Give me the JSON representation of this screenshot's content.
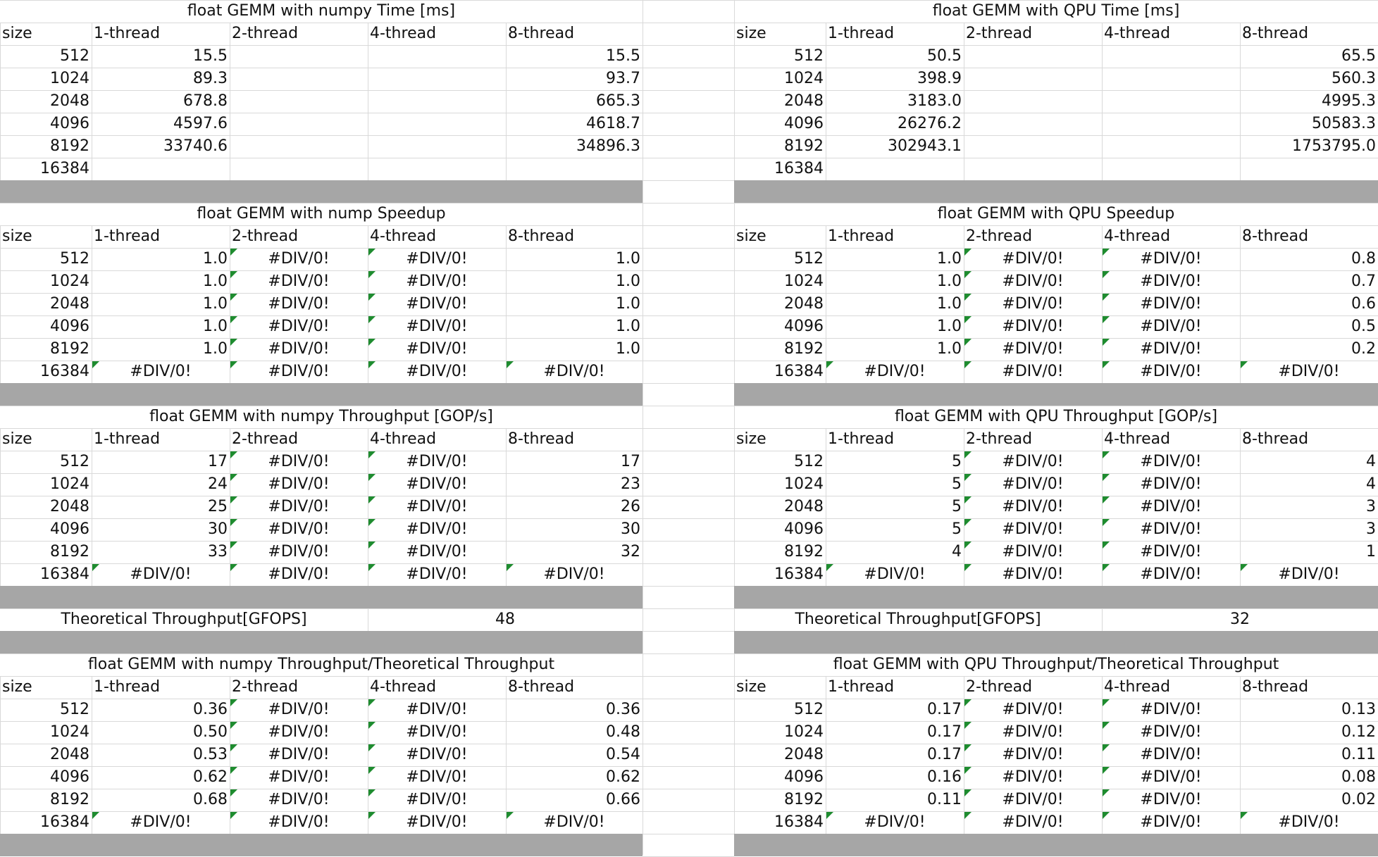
{
  "left": {
    "time_title": "float GEMM with numpy Time [ms]",
    "speedup_title": "float GEMM with nump Speedup",
    "throughput_title": "float GEMM with numpy Throughput [GOP/s]",
    "theo_label": "Theoretical Throughput[GFOPS]",
    "theo_value": "48",
    "ratio_title": "float GEMM with numpy Throughput/Theoretical Throughput"
  },
  "right": {
    "time_title": "float GEMM with QPU Time [ms]",
    "speedup_title": "float GEMM with QPU Speedup",
    "throughput_title": "float GEMM with QPU Throughput [GOP/s]",
    "theo_label": "Theoretical Throughput[GFOPS]",
    "theo_value": "32",
    "ratio_title": "float GEMM with QPU Throughput/Theoretical Throughput"
  },
  "headers": [
    "size",
    "1-thread",
    "2-thread",
    "4-thread",
    "8-thread"
  ],
  "sizes": [
    "512",
    "1024",
    "2048",
    "4096",
    "8192",
    "16384"
  ],
  "tables": {
    "left_time": [
      [
        "15.5",
        "",
        "",
        "15.5"
      ],
      [
        "89.3",
        "",
        "",
        "93.7"
      ],
      [
        "678.8",
        "",
        "",
        "665.3"
      ],
      [
        "4597.6",
        "",
        "",
        "4618.7"
      ],
      [
        "33740.6",
        "",
        "",
        "34896.3"
      ],
      [
        "",
        "",
        "",
        ""
      ]
    ],
    "right_time": [
      [
        "50.5",
        "",
        "",
        "65.5"
      ],
      [
        "398.9",
        "",
        "",
        "560.3"
      ],
      [
        "3183.0",
        "",
        "",
        "4995.3"
      ],
      [
        "26276.2",
        "",
        "",
        "50583.3"
      ],
      [
        "302943.1",
        "",
        "",
        "1753795.0"
      ],
      [
        "",
        "",
        "",
        ""
      ]
    ],
    "left_speedup": [
      [
        "1.0",
        "#DIV/0!",
        "#DIV/0!",
        "1.0"
      ],
      [
        "1.0",
        "#DIV/0!",
        "#DIV/0!",
        "1.0"
      ],
      [
        "1.0",
        "#DIV/0!",
        "#DIV/0!",
        "1.0"
      ],
      [
        "1.0",
        "#DIV/0!",
        "#DIV/0!",
        "1.0"
      ],
      [
        "1.0",
        "#DIV/0!",
        "#DIV/0!",
        "1.0"
      ],
      [
        "#DIV/0!",
        "#DIV/0!",
        "#DIV/0!",
        "#DIV/0!"
      ]
    ],
    "right_speedup": [
      [
        "1.0",
        "#DIV/0!",
        "#DIV/0!",
        "0.8"
      ],
      [
        "1.0",
        "#DIV/0!",
        "#DIV/0!",
        "0.7"
      ],
      [
        "1.0",
        "#DIV/0!",
        "#DIV/0!",
        "0.6"
      ],
      [
        "1.0",
        "#DIV/0!",
        "#DIV/0!",
        "0.5"
      ],
      [
        "1.0",
        "#DIV/0!",
        "#DIV/0!",
        "0.2"
      ],
      [
        "#DIV/0!",
        "#DIV/0!",
        "#DIV/0!",
        "#DIV/0!"
      ]
    ],
    "left_throughput": [
      [
        "17",
        "#DIV/0!",
        "#DIV/0!",
        "17"
      ],
      [
        "24",
        "#DIV/0!",
        "#DIV/0!",
        "23"
      ],
      [
        "25",
        "#DIV/0!",
        "#DIV/0!",
        "26"
      ],
      [
        "30",
        "#DIV/0!",
        "#DIV/0!",
        "30"
      ],
      [
        "33",
        "#DIV/0!",
        "#DIV/0!",
        "32"
      ],
      [
        "#DIV/0!",
        "#DIV/0!",
        "#DIV/0!",
        "#DIV/0!"
      ]
    ],
    "right_throughput": [
      [
        "5",
        "#DIV/0!",
        "#DIV/0!",
        "4"
      ],
      [
        "5",
        "#DIV/0!",
        "#DIV/0!",
        "4"
      ],
      [
        "5",
        "#DIV/0!",
        "#DIV/0!",
        "3"
      ],
      [
        "5",
        "#DIV/0!",
        "#DIV/0!",
        "3"
      ],
      [
        "4",
        "#DIV/0!",
        "#DIV/0!",
        "1"
      ],
      [
        "#DIV/0!",
        "#DIV/0!",
        "#DIV/0!",
        "#DIV/0!"
      ]
    ],
    "left_ratio": [
      [
        "0.36",
        "#DIV/0!",
        "#DIV/0!",
        "0.36"
      ],
      [
        "0.50",
        "#DIV/0!",
        "#DIV/0!",
        "0.48"
      ],
      [
        "0.53",
        "#DIV/0!",
        "#DIV/0!",
        "0.54"
      ],
      [
        "0.62",
        "#DIV/0!",
        "#DIV/0!",
        "0.62"
      ],
      [
        "0.68",
        "#DIV/0!",
        "#DIV/0!",
        "0.66"
      ],
      [
        "#DIV/0!",
        "#DIV/0!",
        "#DIV/0!",
        "#DIV/0!"
      ]
    ],
    "right_ratio": [
      [
        "0.17",
        "#DIV/0!",
        "#DIV/0!",
        "0.13"
      ],
      [
        "0.17",
        "#DIV/0!",
        "#DIV/0!",
        "0.12"
      ],
      [
        "0.17",
        "#DIV/0!",
        "#DIV/0!",
        "0.11"
      ],
      [
        "0.16",
        "#DIV/0!",
        "#DIV/0!",
        "0.08"
      ],
      [
        "0.11",
        "#DIV/0!",
        "#DIV/0!",
        "0.02"
      ],
      [
        "#DIV/0!",
        "#DIV/0!",
        "#DIV/0!",
        "#DIV/0!"
      ]
    ]
  },
  "colors": {
    "gridline": "#d9d9d9",
    "separator_band": "#a6a6a6",
    "error_indicator": "#1e8c2f",
    "text": "#111111"
  }
}
